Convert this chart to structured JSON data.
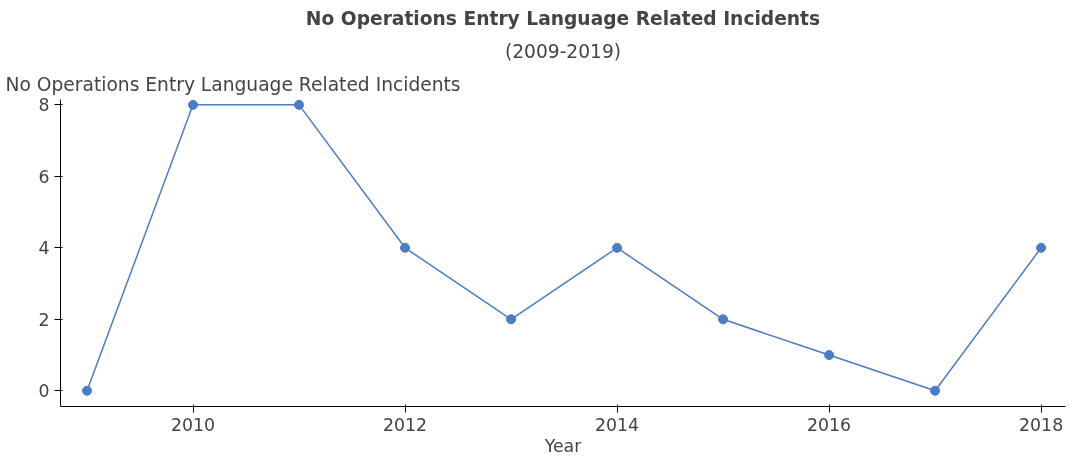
{
  "chart_data": {
    "type": "line",
    "title": "No Operations Entry Language Related Incidents",
    "subtitle": "(2009-2019)",
    "xlabel": "Year",
    "ylabel": "No Operations Entry Language Related Incidents",
    "x": [
      2009,
      2010,
      2011,
      2012,
      2013,
      2014,
      2015,
      2016,
      2017,
      2018
    ],
    "series": [
      {
        "color": "#4a7cc7",
        "values": [
          0,
          8,
          8,
          4,
          2,
          4,
          2,
          1,
          0,
          4
        ]
      }
    ],
    "xlim": [
      2008.75,
      2018.23
    ],
    "ylim": [
      -0.44,
      8.15
    ],
    "xticks": [
      2010,
      2012,
      2014,
      2016,
      2018
    ],
    "yticks": [
      0,
      2,
      4,
      6,
      8
    ],
    "grid": false,
    "marker": "circle",
    "line_style": "solid"
  }
}
